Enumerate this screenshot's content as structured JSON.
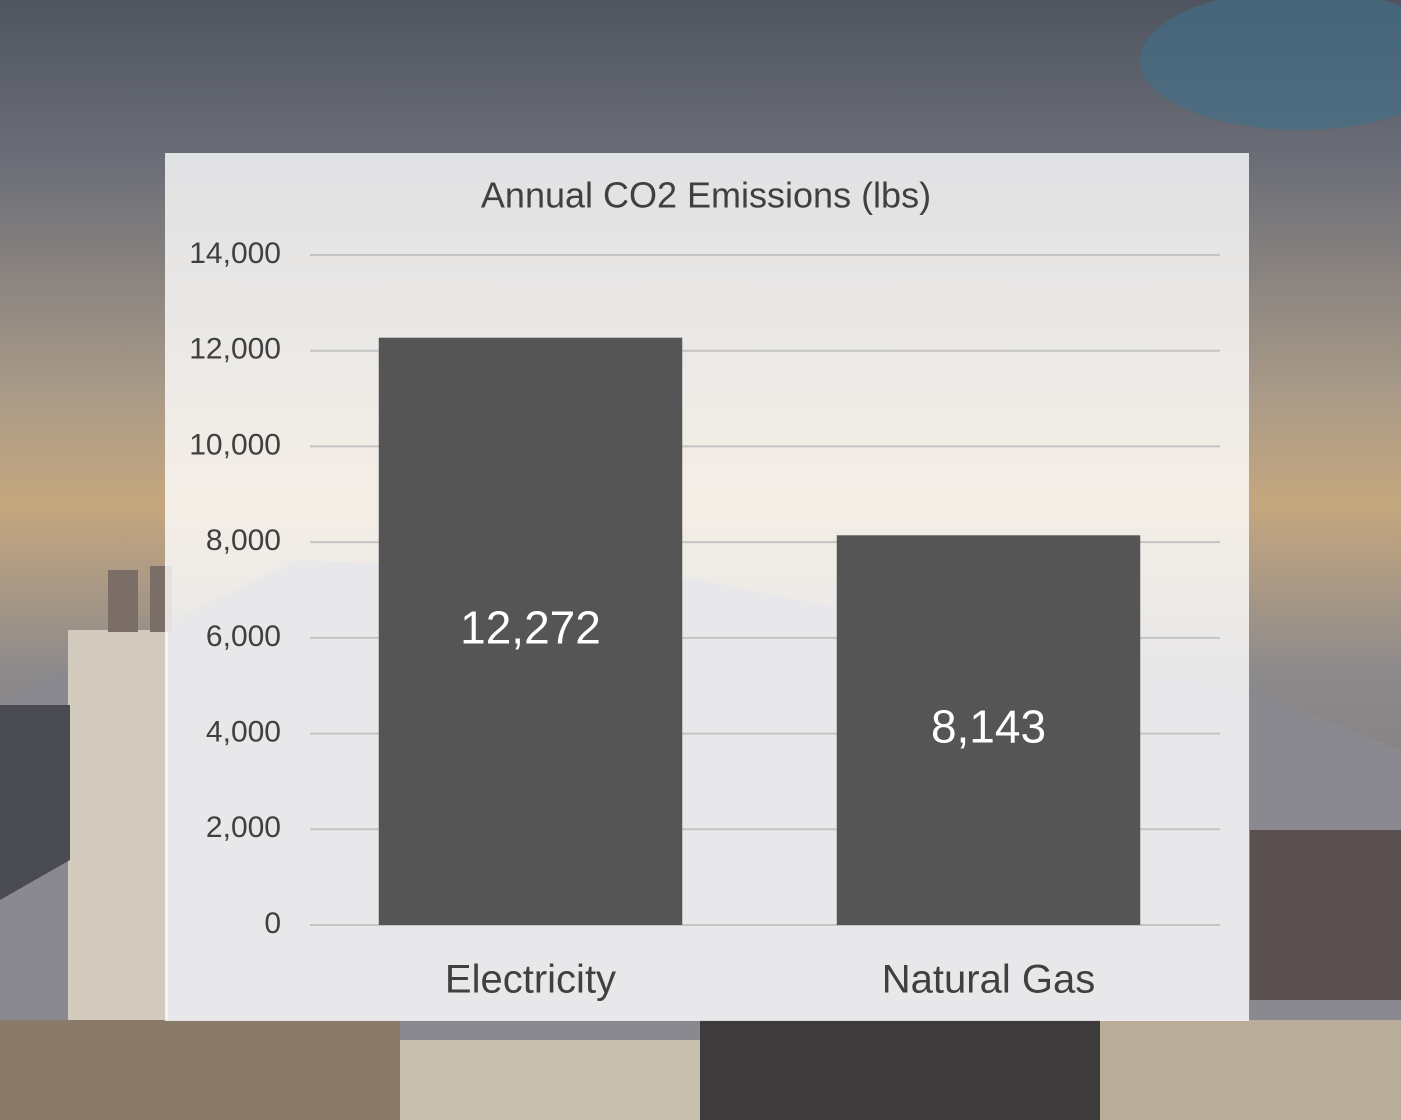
{
  "chart_data": {
    "type": "bar",
    "title": "Annual CO2 Emissions (lbs)",
    "categories": [
      "Electricity",
      "Natural Gas"
    ],
    "values": [
      12272,
      8143
    ],
    "value_labels": [
      "12,272",
      "8,143"
    ],
    "color": "#555555",
    "ylim": [
      0,
      14000
    ],
    "yticks": [
      0,
      {
        "value": 2000,
        "label": "2,000"
      },
      {
        "value": 4000,
        "label": "4,000"
      },
      {
        "value": 6000,
        "label": "6,000"
      },
      {
        "value": 8000,
        "label": "8,000"
      },
      {
        "value": 10000,
        "label": "10,000"
      },
      {
        "value": 12000,
        "label": "12,000"
      },
      {
        "value": 14000,
        "label": "14,000"
      }
    ],
    "grid": true
  }
}
